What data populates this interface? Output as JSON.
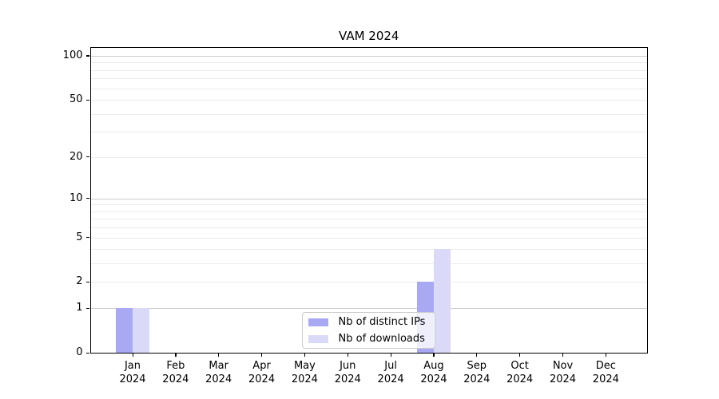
{
  "chart_data": {
    "type": "bar",
    "title": "VAM 2024",
    "categories": [
      {
        "month": "Jan",
        "year": "2024"
      },
      {
        "month": "Feb",
        "year": "2024"
      },
      {
        "month": "Mar",
        "year": "2024"
      },
      {
        "month": "Apr",
        "year": "2024"
      },
      {
        "month": "May",
        "year": "2024"
      },
      {
        "month": "Jun",
        "year": "2024"
      },
      {
        "month": "Jul",
        "year": "2024"
      },
      {
        "month": "Aug",
        "year": "2024"
      },
      {
        "month": "Sep",
        "year": "2024"
      },
      {
        "month": "Oct",
        "year": "2024"
      },
      {
        "month": "Nov",
        "year": "2024"
      },
      {
        "month": "Dec",
        "year": "2024"
      }
    ],
    "series": [
      {
        "name": "Nb of distinct IPs",
        "color": "#a9a9f3",
        "values": [
          1,
          0,
          0,
          0,
          0,
          0,
          0,
          2,
          0,
          0,
          0,
          0
        ]
      },
      {
        "name": "Nb of downloads",
        "color": "#dadaf8",
        "values": [
          1,
          0,
          0,
          0,
          0,
          0,
          0,
          4,
          0,
          0,
          0,
          0
        ]
      }
    ],
    "y_axis": {
      "scale": "log1p",
      "ylim": [
        0,
        114
      ],
      "tick_values": [
        0,
        1,
        2,
        5,
        10,
        20,
        50,
        100
      ],
      "major_gridlines": [
        1,
        10,
        100
      ],
      "minor_gridlines": [
        2,
        3,
        4,
        5,
        6,
        7,
        8,
        9,
        20,
        30,
        40,
        50,
        60,
        70,
        80,
        90
      ]
    },
    "x_axis": {
      "label": "",
      "tick_mode": "months"
    },
    "grid": true,
    "legend_position": "lower center-right",
    "colors": {
      "major_grid": "#cccccc",
      "minor_grid": "#ececec",
      "spine": "#000000",
      "background": "#ffffff"
    }
  }
}
